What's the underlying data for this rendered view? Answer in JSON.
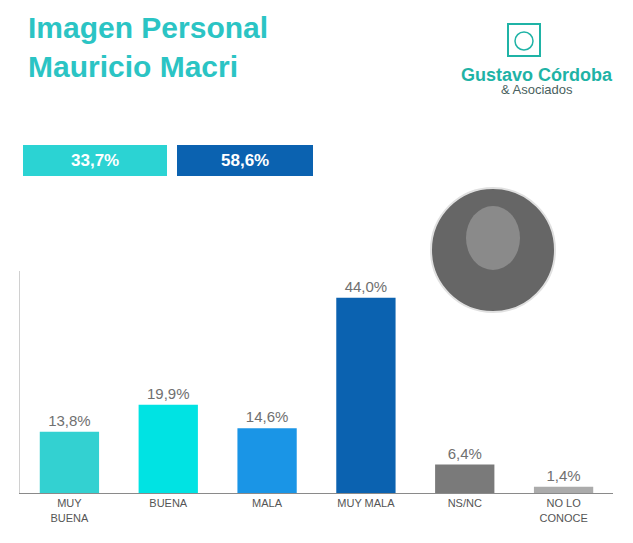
{
  "chart_data": {
    "type": "bar",
    "title": "Imagen Personal Mauricio Macri",
    "categories": [
      "MUY BUENA",
      "BUENA",
      "MALA",
      "MUY MALA",
      "NS/NC",
      "NO LO CONOCE"
    ],
    "values": [
      13.8,
      19.9,
      14.6,
      44.0,
      6.4,
      1.4
    ],
    "value_labels": [
      "13,8%",
      "19,9%",
      "14,6%",
      "44,0%",
      "6,4%",
      "1,4%"
    ],
    "colors": [
      "#33d1d1",
      "#00e3e3",
      "#1a95e6",
      "#0b62b0",
      "#7a7a7a",
      "#ababab"
    ],
    "data_labels": true,
    "tick_labels": "x",
    "grid": false,
    "ylim": [
      0,
      50
    ],
    "yticks": [],
    "annotations": [
      {
        "text": "33,7%",
        "color": "#2bd3d3"
      },
      {
        "text": "58,6%",
        "color": "#0b62b0"
      },
      {
        "text": "Gustavo Córdoba",
        "color": "#1fb3a6"
      },
      {
        "text": "& Asociados",
        "color": "#4a5f5e"
      }
    ]
  }
}
